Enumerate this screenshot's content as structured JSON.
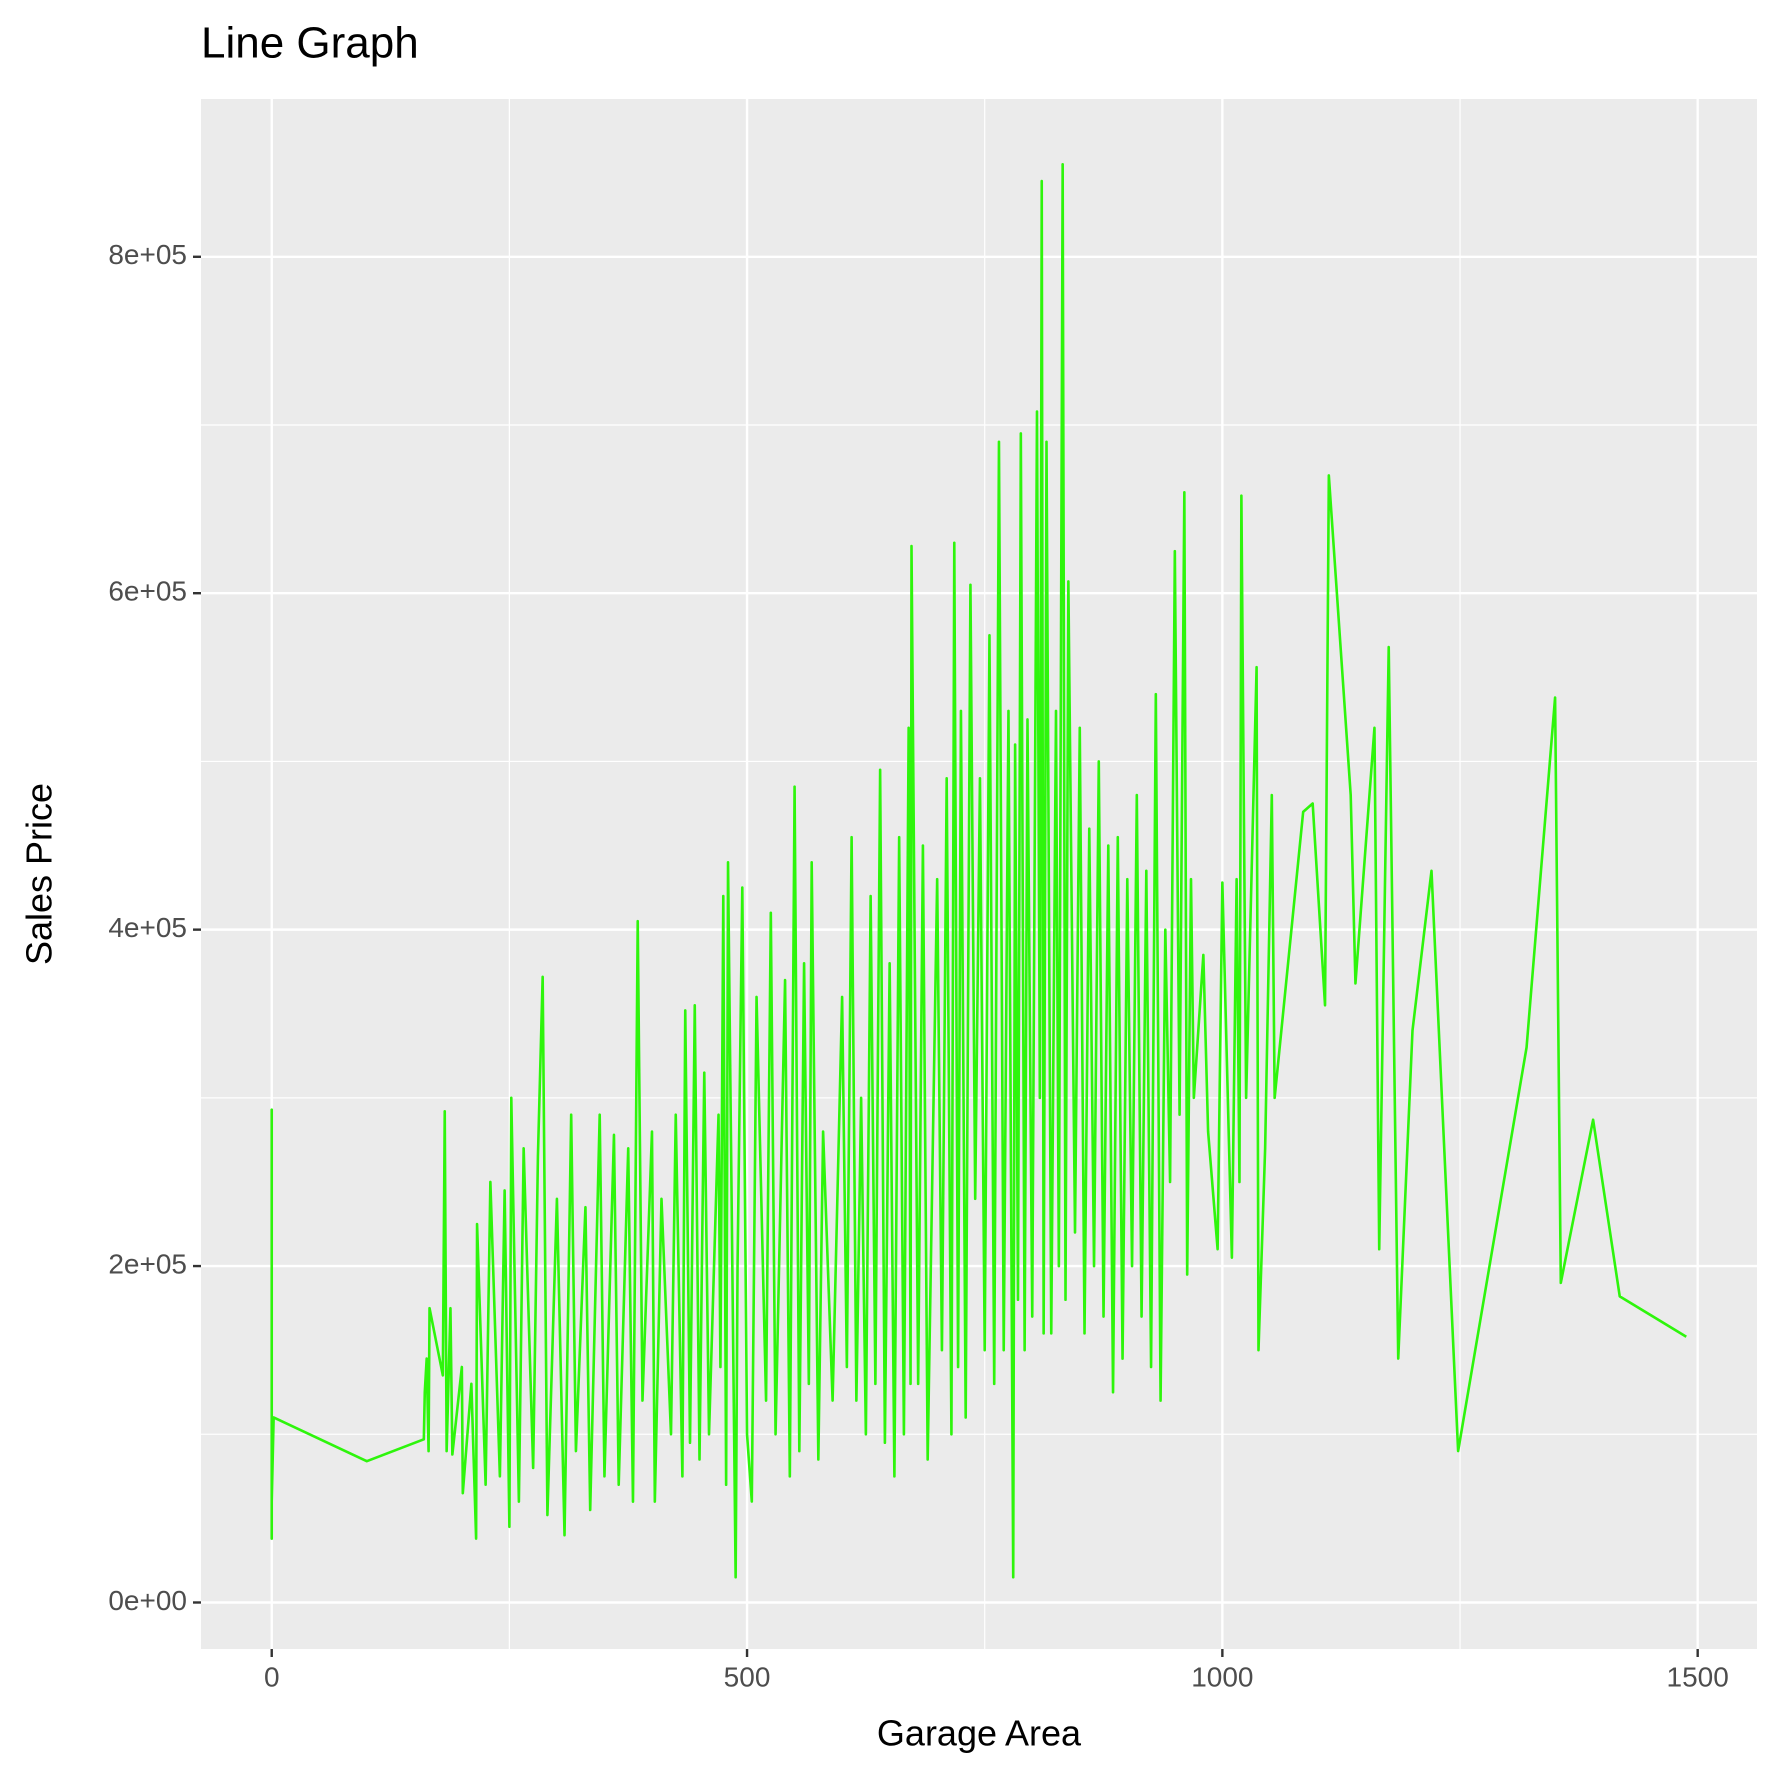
{
  "chart_data": {
    "type": "line",
    "title": "Line Graph",
    "x_label": "Garage Area",
    "y_label": "Sales Price",
    "color": "#2ef50c",
    "xlim": [
      -74.4,
      1562.4
    ],
    "ylim": [
      -27650,
      893800
    ],
    "xticks": [
      0,
      500,
      1000,
      1500
    ],
    "yticks": [
      {
        "value": 0,
        "label": "0e+00"
      },
      {
        "value": 200000,
        "label": "2e+05"
      },
      {
        "value": 400000,
        "label": "4e+05"
      },
      {
        "value": 600000,
        "label": "6e+05"
      },
      {
        "value": 800000,
        "label": "8e+05"
      }
    ],
    "x_minor_ticks": [
      250,
      750,
      1250
    ],
    "y_minor_ticks": [
      100000,
      300000,
      500000,
      700000
    ],
    "grid": true,
    "x": [
      0,
      0,
      0,
      0,
      2,
      100,
      160,
      161,
      163,
      165,
      166,
      180,
      182,
      184,
      188,
      190,
      200,
      201,
      210,
      215,
      216,
      225,
      230,
      240,
      245,
      250,
      252,
      260,
      265,
      275,
      280,
      285,
      290,
      300,
      308,
      315,
      320,
      330,
      335,
      345,
      350,
      360,
      365,
      375,
      380,
      385,
      390,
      400,
      403,
      410,
      420,
      425,
      432,
      435,
      440,
      445,
      450,
      455,
      460,
      470,
      472,
      475,
      478,
      480,
      488,
      490,
      495,
      500,
      505,
      510,
      520,
      525,
      530,
      540,
      545,
      550,
      555,
      560,
      565,
      568,
      575,
      580,
      590,
      600,
      605,
      610,
      615,
      620,
      625,
      630,
      635,
      640,
      645,
      650,
      655,
      660,
      665,
      670,
      672,
      673,
      680,
      685,
      690,
      700,
      705,
      710,
      715,
      718,
      722,
      725,
      730,
      735,
      740,
      745,
      750,
      755,
      760,
      765,
      770,
      775,
      780,
      782,
      785,
      788,
      792,
      795,
      800,
      805,
      808,
      810,
      812,
      815,
      820,
      825,
      828,
      832,
      835,
      838,
      845,
      850,
      855,
      860,
      865,
      870,
      875,
      880,
      885,
      890,
      895,
      900,
      905,
      910,
      915,
      920,
      925,
      930,
      935,
      940,
      945,
      950,
      955,
      960,
      963,
      967,
      970,
      980,
      985,
      995,
      1000,
      1010,
      1015,
      1018,
      1020,
      1025,
      1036,
      1038,
      1045,
      1052,
      1055,
      1085,
      1095,
      1108,
      1112,
      1135,
      1140,
      1160,
      1165,
      1175,
      1185,
      1200,
      1220,
      1248,
      1320,
      1350,
      1356,
      1390,
      1418,
      1488
    ],
    "values": [
      140000,
      38000,
      293000,
      60000,
      110000,
      84000,
      97000,
      125000,
      145000,
      90000,
      175000,
      135000,
      292000,
      90000,
      175000,
      88000,
      140000,
      65000,
      130000,
      38000,
      225000,
      70000,
      250000,
      75000,
      245000,
      45000,
      300000,
      60000,
      270000,
      80000,
      265000,
      372000,
      52000,
      240000,
      40000,
      290000,
      90000,
      235000,
      55000,
      290000,
      75000,
      278000,
      70000,
      270000,
      60000,
      405000,
      120000,
      280000,
      60000,
      240000,
      100000,
      290000,
      75000,
      352000,
      95000,
      355000,
      85000,
      315000,
      100000,
      290000,
      140000,
      420000,
      70000,
      440000,
      15000,
      200000,
      425000,
      100000,
      60000,
      360000,
      120000,
      410000,
      100000,
      370000,
      75000,
      485000,
      90000,
      380000,
      130000,
      440000,
      85000,
      280000,
      120000,
      360000,
      140000,
      455000,
      120000,
      300000,
      100000,
      420000,
      130000,
      495000,
      95000,
      380000,
      75000,
      455000,
      100000,
      520000,
      130000,
      628000,
      130000,
      450000,
      85000,
      430000,
      150000,
      490000,
      100000,
      630000,
      140000,
      530000,
      110000,
      605000,
      240000,
      490000,
      150000,
      575000,
      130000,
      690000,
      150000,
      530000,
      15000,
      510000,
      180000,
      695000,
      150000,
      525000,
      170000,
      708000,
      300000,
      845000,
      160000,
      690000,
      160000,
      530000,
      200000,
      855000,
      180000,
      607000,
      220000,
      520000,
      160000,
      460000,
      200000,
      500000,
      170000,
      450000,
      125000,
      455000,
      145000,
      430000,
      200000,
      480000,
      170000,
      435000,
      140000,
      540000,
      120000,
      400000,
      250000,
      625000,
      290000,
      660000,
      195000,
      430000,
      300000,
      385000,
      280000,
      210000,
      428000,
      205000,
      430000,
      250000,
      658000,
      300000,
      556000,
      150000,
      270000,
      480000,
      300000,
      470000,
      475000,
      355000,
      670000,
      480000,
      368000,
      520000,
      210000,
      568000,
      145000,
      340000,
      435000,
      90000,
      330000,
      538000,
      190000,
      287000,
      182000,
      158000
    ]
  }
}
